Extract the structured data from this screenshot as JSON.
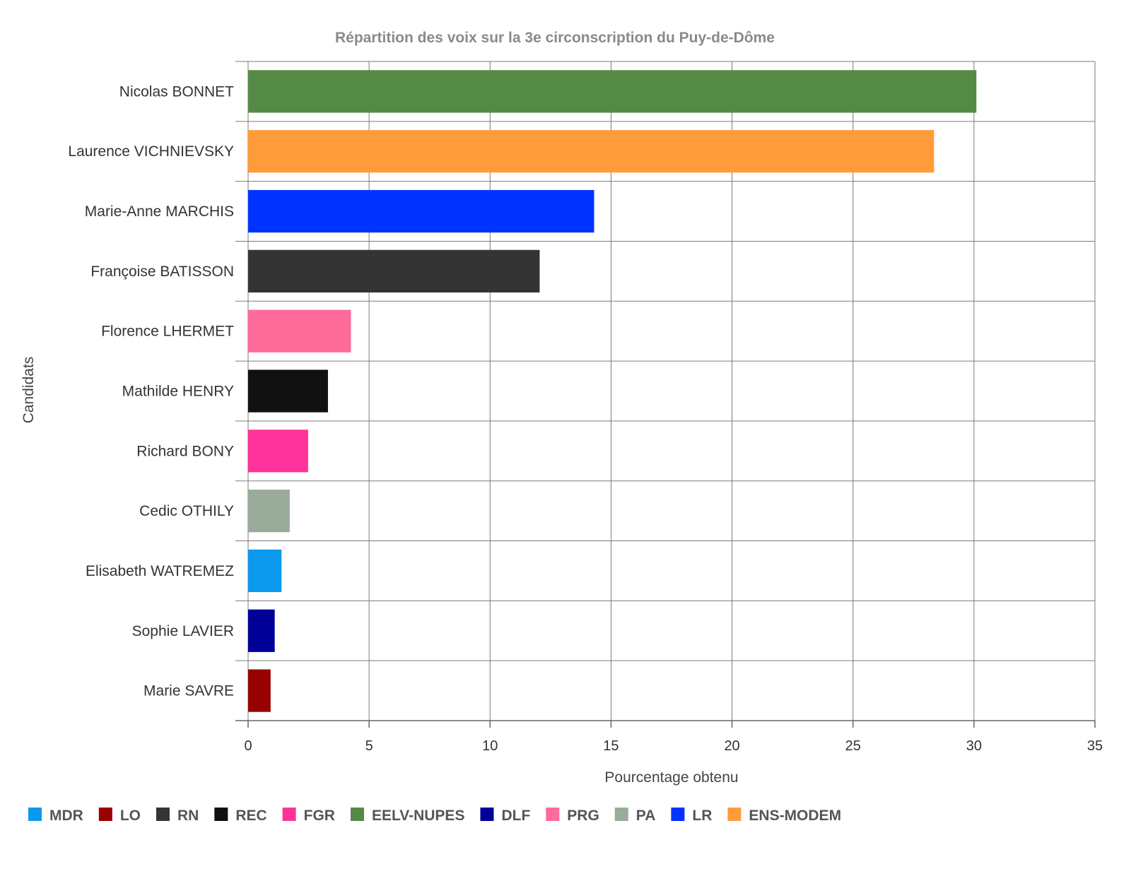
{
  "chart_data": {
    "type": "bar",
    "orientation": "horizontal",
    "title": "Répartition des voix sur la 3e circonscription du Puy-de-Dôme",
    "xlabel": "Pourcentage obtenu",
    "ylabel": "Candidats",
    "xlim": [
      0,
      35
    ],
    "xticks": [
      0,
      5,
      10,
      15,
      20,
      25,
      30,
      35
    ],
    "grid": true,
    "legend_position": "bottom-left",
    "categories": [
      "Nicolas BONNET",
      "Laurence VICHNIEVSKY",
      "Marie-Anne MARCHIS",
      "Françoise BATISSON",
      "Florence LHERMET",
      "Mathilde HENRY",
      "Richard BONY",
      "Cedic OTHILY",
      "Elisabeth WATREMEZ",
      "Sophie LAVIER",
      "Marie SAVRE"
    ],
    "values": [
      30.1,
      28.35,
      14.3,
      12.05,
      4.25,
      3.3,
      2.48,
      1.72,
      1.38,
      1.1,
      0.93
    ],
    "parties": [
      "EELV-NUPES",
      "ENS-MODEM",
      "LR",
      "RN",
      "PRG",
      "REC",
      "FGR",
      "PA",
      "MDR",
      "DLF",
      "LO"
    ],
    "legend": [
      {
        "name": "MDR",
        "color": "#0a99ed"
      },
      {
        "name": "LO",
        "color": "#990000"
      },
      {
        "name": "RN",
        "color": "#343434"
      },
      {
        "name": "REC",
        "color": "#111111"
      },
      {
        "name": "FGR",
        "color": "#ff3399"
      },
      {
        "name": "EELV-NUPES",
        "color": "#548a45"
      },
      {
        "name": "DLF",
        "color": "#000099"
      },
      {
        "name": "PRG",
        "color": "#ff6b9a"
      },
      {
        "name": "PA",
        "color": "#9aab99"
      },
      {
        "name": "LR",
        "color": "#0033ff"
      },
      {
        "name": "ENS-MODEM",
        "color": "#ff9c39"
      }
    ]
  }
}
